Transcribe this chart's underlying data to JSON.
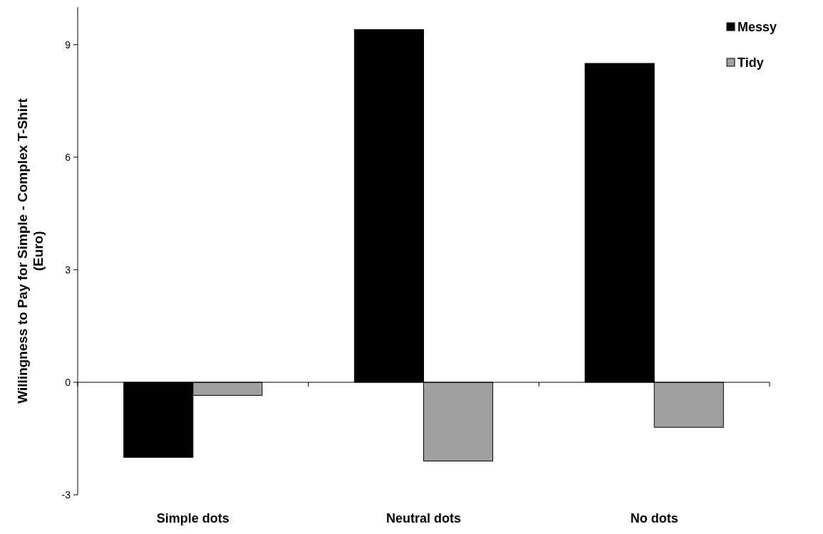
{
  "chart_data": {
    "type": "bar",
    "ylabel": "Willingness to Pay for  Simple - Complex T-Shirt (Euro)",
    "categories": [
      "Simple dots",
      "Neutral dots",
      "No dots"
    ],
    "series": [
      {
        "name": "Messy",
        "color": "#000000",
        "values": [
          -2.0,
          9.4,
          8.5
        ]
      },
      {
        "name": "Tidy",
        "color": "#a0a0a0",
        "values": [
          -0.35,
          -2.1,
          -1.2
        ]
      }
    ],
    "ylim": [
      -3,
      10
    ],
    "yticks": [
      -3,
      0,
      3,
      6,
      9
    ],
    "legend": "top right"
  }
}
